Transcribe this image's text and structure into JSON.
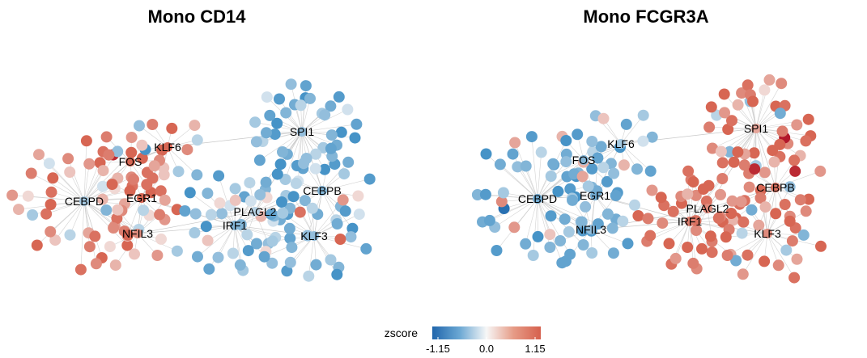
{
  "panels": [
    {
      "title": "Mono CD14",
      "hubs": [
        {
          "label": "SPI1",
          "z": -0.4
        },
        {
          "label": "KLF6",
          "z": 0.9
        },
        {
          "label": "FOS",
          "z": 0.9
        },
        {
          "label": "CEBPD",
          "z": -0.3
        },
        {
          "label": "EGR1",
          "z": 0.9
        },
        {
          "label": "NFIL3",
          "z": 0.6
        },
        {
          "label": "CEBPB",
          "z": -0.5
        },
        {
          "label": "PLAGL2",
          "z": -0.2
        },
        {
          "label": "IRF1",
          "z": -0.5
        },
        {
          "label": "KLF3",
          "z": -0.4
        }
      ],
      "target_zscores": [
        [
          -0.9,
          -0.6,
          -0.3,
          -0.8,
          -0.5,
          -0.2,
          -0.9,
          -0.7,
          -0.4,
          -0.1,
          -0.8,
          -0.6,
          -0.3,
          -0.9,
          -0.5,
          -0.7,
          -0.2,
          -0.8,
          -0.4,
          -0.6,
          -0.9,
          -0.3,
          -0.7,
          -0.5,
          -0.1,
          -0.8,
          -0.6,
          -0.4,
          -0.9,
          -0.2,
          -0.7,
          -0.5,
          -0.3,
          -0.8,
          -0.6,
          -0.4,
          -0.1,
          -0.9,
          -0.5,
          -0.7
        ],
        [
          -0.5,
          -0.3,
          0.2,
          0.8,
          0.9,
          -0.9,
          -0.4,
          0.7,
          0.9,
          0.3,
          -0.2,
          0.6
        ],
        [
          0.9,
          0.8,
          0.3,
          -0.1,
          0.9,
          1.1,
          0.7,
          0.5,
          0.2,
          0.9,
          0.6,
          0.8
        ],
        [
          0.9,
          0.7,
          0.4,
          0.8,
          0.2,
          -0.2,
          0.9,
          0.6,
          0.8,
          0.3,
          -0.3,
          0.9,
          0.5,
          0.1,
          0.8,
          0.7,
          -0.1,
          0.9,
          0.4,
          0.6,
          0.2,
          0.9,
          0.8,
          0.5,
          -0.4,
          0.7,
          0.3,
          0.9,
          0.6,
          0.1,
          0.8,
          0.9,
          0.4,
          -0.2,
          0.7,
          0.5,
          0.9,
          0.3,
          0.8,
          0.6
        ],
        [
          0.9,
          0.8,
          0.6,
          0.3,
          0.9,
          0.7,
          0.4,
          0.2,
          0.8,
          0.9,
          0.5,
          0.1
        ],
        [
          0.3,
          0.1,
          0.6,
          -0.5,
          0.2,
          -0.2,
          0.4,
          0.7,
          0.1,
          -0.3,
          0.5,
          0.2
        ],
        [
          -0.8,
          -0.5,
          -0.2,
          -0.9,
          -0.4,
          -0.1,
          -0.7,
          -0.6,
          -0.3,
          -0.8,
          0.1,
          -0.5,
          -0.9,
          -0.2,
          -0.6,
          -0.4
        ],
        [
          -0.4,
          -0.1,
          -0.7,
          -0.2,
          -0.5,
          0.1,
          -0.3,
          -0.6,
          -0.1,
          -0.4,
          -0.2,
          -0.5
        ],
        [
          -0.7,
          -0.4,
          -0.2,
          -0.9,
          -0.5,
          0.1,
          -0.8,
          -0.3,
          0.2,
          -0.6,
          -0.4,
          -0.1,
          -0.9,
          -0.5,
          0.3,
          -0.7,
          -0.2,
          -0.6,
          -0.4,
          0.1,
          -0.8,
          -0.3,
          -0.5,
          -0.2,
          -0.7,
          -0.4,
          0.2,
          -0.6,
          -0.3,
          -0.9
        ],
        [
          -0.7,
          -0.3,
          0.8,
          -0.9,
          -0.5,
          -0.2,
          0.5,
          -0.8,
          -0.6,
          -0.1,
          -0.4,
          0.9,
          -0.7,
          -0.5,
          -0.3,
          -0.9,
          -0.2,
          -0.6,
          -0.8,
          -0.4,
          -0.5,
          -0.7,
          -0.3,
          -0.6
        ]
      ]
    },
    {
      "title": "Mono FCGR3A",
      "hubs": [
        {
          "label": "SPI1",
          "z": 0.4
        },
        {
          "label": "KLF6",
          "z": -0.3
        },
        {
          "label": "FOS",
          "z": -0.5
        },
        {
          "label": "CEBPD",
          "z": -0.6
        },
        {
          "label": "EGR1",
          "z": -0.6
        },
        {
          "label": "NFIL3",
          "z": -0.4
        },
        {
          "label": "CEBPB",
          "z": 0.8
        },
        {
          "label": "PLAGL2",
          "z": 0.6
        },
        {
          "label": "IRF1",
          "z": 0.7
        },
        {
          "label": "KLF3",
          "z": 0.6
        }
      ],
      "target_zscores": [
        [
          0.9,
          0.6,
          1.15,
          0.3,
          0.8,
          0.9,
          0.5,
          -0.3,
          0.9,
          0.7,
          1.1,
          0.4,
          0.8,
          -0.5,
          0.9,
          0.6,
          0.2,
          0.9,
          0.7,
          -0.2,
          0.8,
          0.9,
          0.5,
          0.3,
          0.9,
          0.6,
          -0.4,
          0.8,
          0.7,
          0.9,
          0.4,
          0.1,
          0.9,
          0.6,
          0.8,
          -0.6,
          0.9,
          0.5,
          0.7,
          0.8
        ],
        [
          -0.7,
          -0.5,
          0.3,
          -0.8,
          -0.2,
          -0.6,
          -0.4,
          0.2,
          -0.7,
          -0.3,
          -0.5,
          -0.1
        ],
        [
          -0.8,
          -0.5,
          -0.9,
          -0.3,
          -0.7,
          -0.6,
          0.3,
          -0.8,
          -0.4,
          -0.9,
          -0.5,
          -0.2
        ],
        [
          -0.7,
          -0.5,
          -0.9,
          -0.3,
          -0.6,
          0.5,
          -0.8,
          -0.4,
          -1.1,
          -0.6,
          -0.7,
          0.6,
          -0.5,
          -0.8,
          -0.3,
          -0.9,
          -0.6,
          -0.4,
          0.4,
          -0.7,
          -0.5,
          -0.8,
          -0.2,
          -0.6,
          -0.9,
          -0.4,
          -0.7,
          0.3,
          -0.5,
          -0.8,
          -0.6,
          -0.3,
          -0.9,
          -0.7,
          -0.4,
          -0.6,
          -0.5,
          -0.8,
          0.2,
          -0.7
        ],
        [
          -0.8,
          -0.5,
          -0.3,
          -0.9,
          -0.6,
          0.4,
          -0.7,
          -0.4,
          -0.8,
          -0.2,
          -0.6,
          -0.5
        ],
        [
          -0.7,
          -0.5,
          -0.3,
          -0.8,
          -0.6,
          -0.4,
          -0.7,
          -0.2,
          -0.5,
          -0.8,
          -0.6,
          -0.3
        ],
        [
          0.9,
          0.8,
          0.6,
          0.9,
          0.7,
          0.3,
          0.9,
          0.8,
          1.1,
          0.5,
          0.9,
          0.7,
          0.8,
          0.6,
          0.9,
          0.4
        ],
        [
          0.8,
          0.9,
          0.6,
          0.7,
          0.9,
          0.5,
          0.8,
          0.3,
          0.9,
          0.7,
          0.6,
          0.8
        ],
        [
          0.9,
          0.7,
          0.8,
          0.5,
          0.9,
          0.6,
          0.8,
          0.9,
          0.3,
          0.7,
          0.9,
          0.8,
          0.5,
          0.9,
          0.6,
          0.8,
          0.7,
          0.9,
          0.4,
          0.8,
          0.9,
          0.6,
          0.7,
          0.9,
          0.8,
          0.5,
          0.9,
          0.7,
          0.8,
          0.6
        ],
        [
          0.8,
          0.5,
          -0.6,
          0.9,
          0.7,
          0.3,
          -0.4,
          0.8,
          0.9,
          0.6,
          -0.5,
          0.7,
          0.9,
          0.4,
          -0.3,
          0.8,
          0.6,
          0.9,
          0.5,
          -0.6,
          0.8,
          0.7,
          0.9,
          -0.2
        ]
      ]
    }
  ],
  "legend": {
    "title": "zscore",
    "ticks": [
      "-1.15",
      "0.0",
      "1.15"
    ],
    "min": -1.15,
    "max": 1.15,
    "color_low": "#3f8fc5",
    "color_mid": "#f7f7f7",
    "color_high": "#d6604d"
  },
  "colors": {
    "edge": "#c8c8c8",
    "deep_low": "#2166ac",
    "deep_high": "#b2182b"
  }
}
